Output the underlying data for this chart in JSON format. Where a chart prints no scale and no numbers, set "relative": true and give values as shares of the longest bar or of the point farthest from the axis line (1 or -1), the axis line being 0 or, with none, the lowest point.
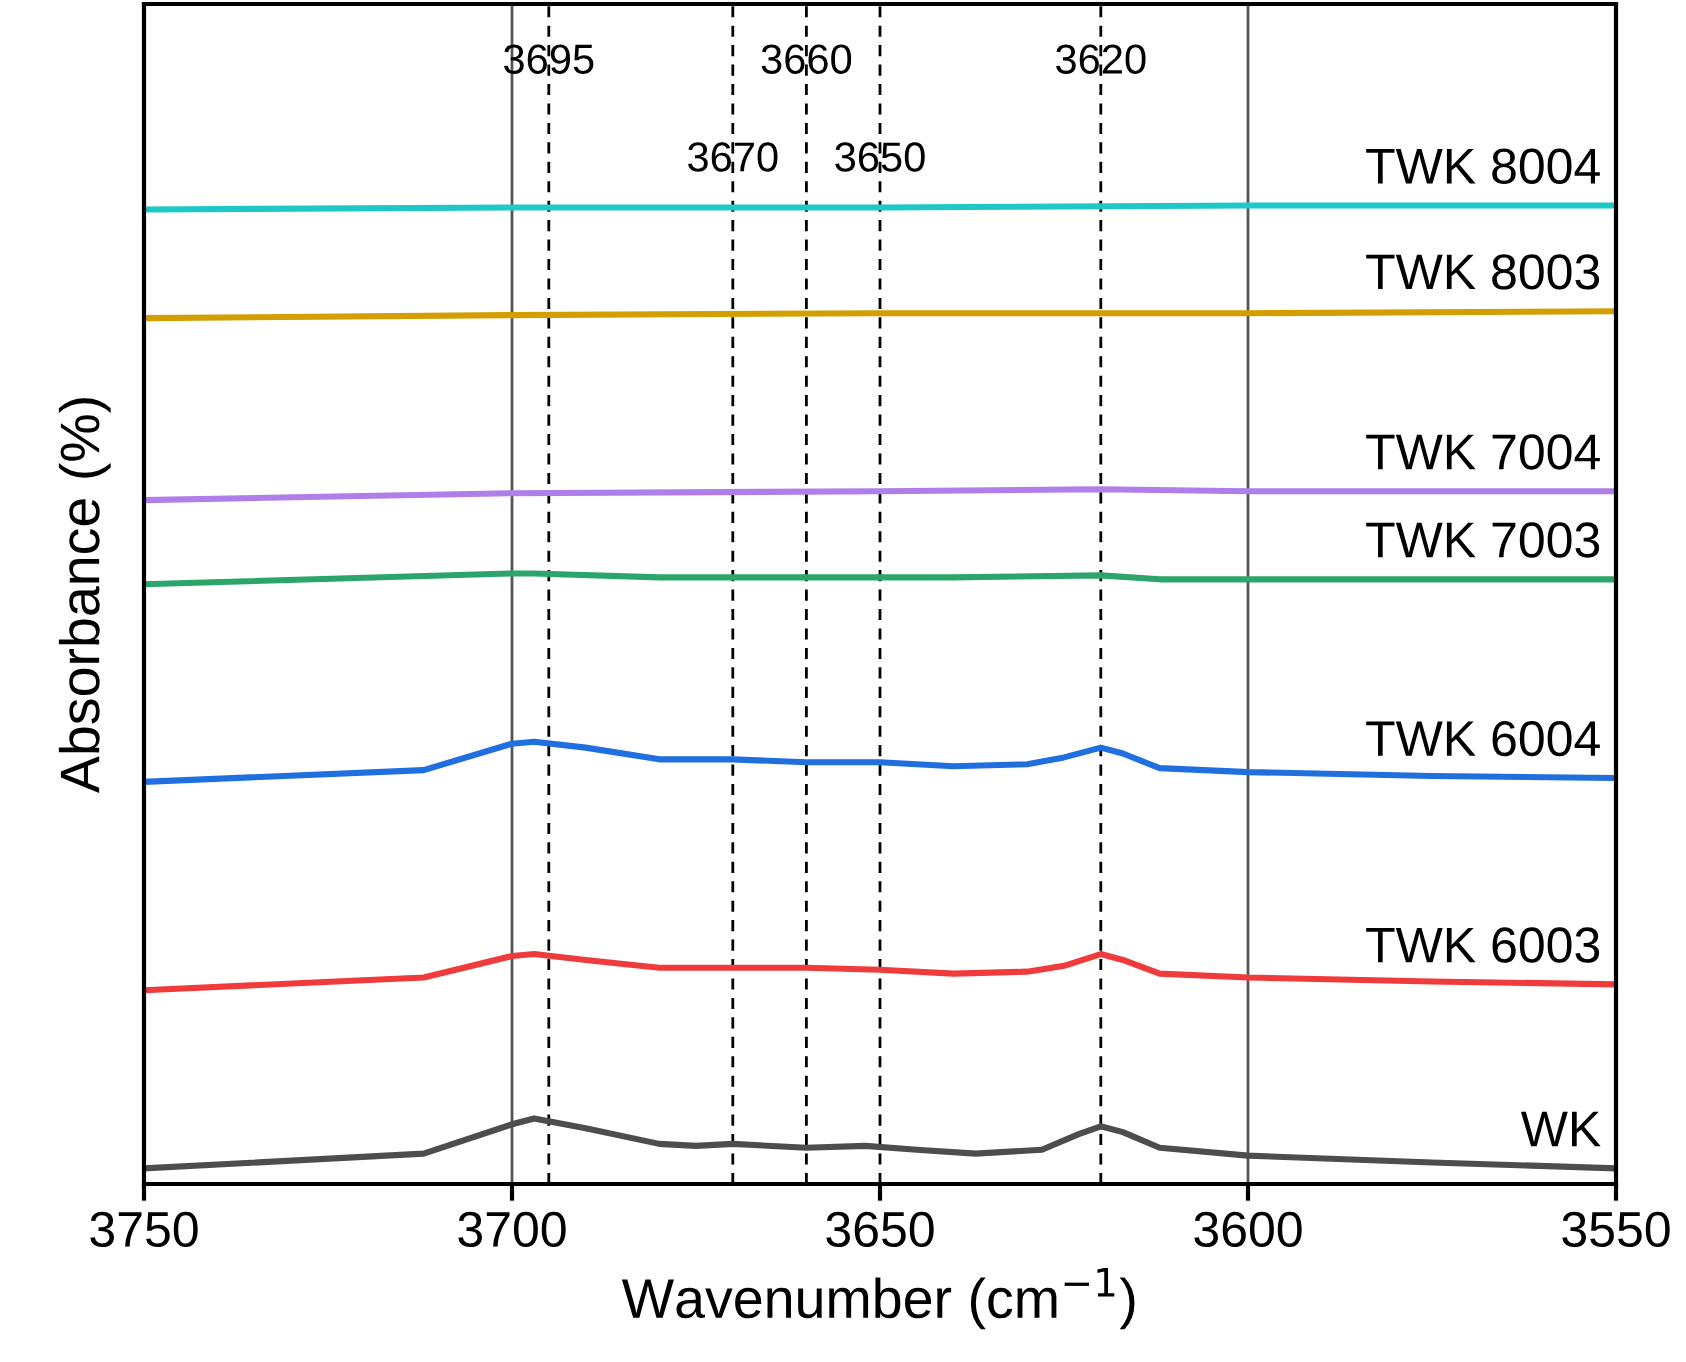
{
  "chart_data": {
    "type": "line",
    "relative": true,
    "xlabel": "Wavenumber (cm$^{−1}$)",
    "ylabel": "Absorbance (%)",
    "xlim": [
      3750,
      3550
    ],
    "xticks": [
      3750,
      3700,
      3650,
      3600,
      3550
    ],
    "grid": false,
    "legend": false,
    "tick_labels": "x",
    "line_style": "solid",
    "marker": "none",
    "series": [
      {
        "name": "WK",
        "color": "#4d4d4d",
        "x": [
          3750,
          3712,
          3700,
          3697,
          3690,
          3680,
          3675,
          3670,
          3660,
          3652,
          3645,
          3637,
          3628,
          3623,
          3620,
          3617,
          3612,
          3600,
          3575,
          3550
        ],
        "values": [
          0.016,
          0.031,
          0.061,
          0.067,
          0.057,
          0.041,
          0.039,
          0.041,
          0.037,
          0.039,
          0.035,
          0.031,
          0.035,
          0.051,
          0.059,
          0.053,
          0.037,
          0.029,
          0.022,
          0.016
        ]
      },
      {
        "name": "TWK 6003",
        "color": "#ef3b3b",
        "x": [
          3750,
          3712,
          3700,
          3697,
          3690,
          3680,
          3670,
          3660,
          3650,
          3640,
          3630,
          3625,
          3620,
          3617,
          3612,
          3600,
          3575,
          3550
        ],
        "values": [
          0.198,
          0.211,
          0.233,
          0.235,
          0.229,
          0.221,
          0.221,
          0.221,
          0.219,
          0.215,
          0.217,
          0.223,
          0.235,
          0.229,
          0.215,
          0.211,
          0.207,
          0.204
        ]
      },
      {
        "name": "TWK 6004",
        "color": "#1f6fe0",
        "x": [
          3750,
          3712,
          3700,
          3697,
          3690,
          3680,
          3670,
          3660,
          3650,
          3640,
          3630,
          3625,
          3620,
          3617,
          3612,
          3600,
          3575,
          3550
        ],
        "values": [
          0.411,
          0.423,
          0.45,
          0.452,
          0.446,
          0.434,
          0.434,
          0.431,
          0.431,
          0.427,
          0.429,
          0.436,
          0.446,
          0.44,
          0.425,
          0.421,
          0.417,
          0.415
        ]
      },
      {
        "name": "TWK 7003",
        "color": "#2ca56a",
        "x": [
          3750,
          3700,
          3697,
          3680,
          3660,
          3640,
          3620,
          3612,
          3600,
          3550
        ],
        "values": [
          0.613,
          0.624,
          0.624,
          0.62,
          0.62,
          0.62,
          0.622,
          0.618,
          0.618,
          0.618
        ]
      },
      {
        "name": "TWK 7004",
        "color": "#b07ee8",
        "x": [
          3750,
          3700,
          3650,
          3620,
          3600,
          3550
        ],
        "values": [
          0.699,
          0.706,
          0.708,
          0.71,
          0.708,
          0.708
        ]
      },
      {
        "name": "TWK 8003",
        "color": "#d39e00",
        "x": [
          3750,
          3700,
          3650,
          3600,
          3550
        ],
        "values": [
          0.885,
          0.888,
          0.89,
          0.89,
          0.892
        ]
      },
      {
        "name": "TWK 8004",
        "color": "#1fc8c8",
        "x": [
          3750,
          3700,
          3650,
          3600,
          3550
        ],
        "values": [
          0.996,
          0.998,
          0.998,
          1,
          1
        ]
      }
    ],
    "ref_lines": [
      {
        "axis": "x",
        "value": 3700,
        "color": "#555555",
        "line_style": "solid"
      },
      {
        "axis": "x",
        "value": 3600,
        "color": "#555555",
        "line_style": "solid"
      },
      {
        "axis": "x",
        "value": 3695,
        "label": "3695",
        "color": "#000000",
        "line_style": "dashed"
      },
      {
        "axis": "x",
        "value": 3670,
        "label": "3670",
        "color": "#000000",
        "line_style": "dashed"
      },
      {
        "axis": "x",
        "value": 3660,
        "label": "3660",
        "color": "#000000",
        "line_style": "dashed"
      },
      {
        "axis": "x",
        "value": 3650,
        "label": "3650",
        "color": "#000000",
        "line_style": "dashed"
      },
      {
        "axis": "x",
        "value": 3620,
        "label": "3620",
        "color": "#000000",
        "line_style": "dashed"
      }
    ]
  }
}
